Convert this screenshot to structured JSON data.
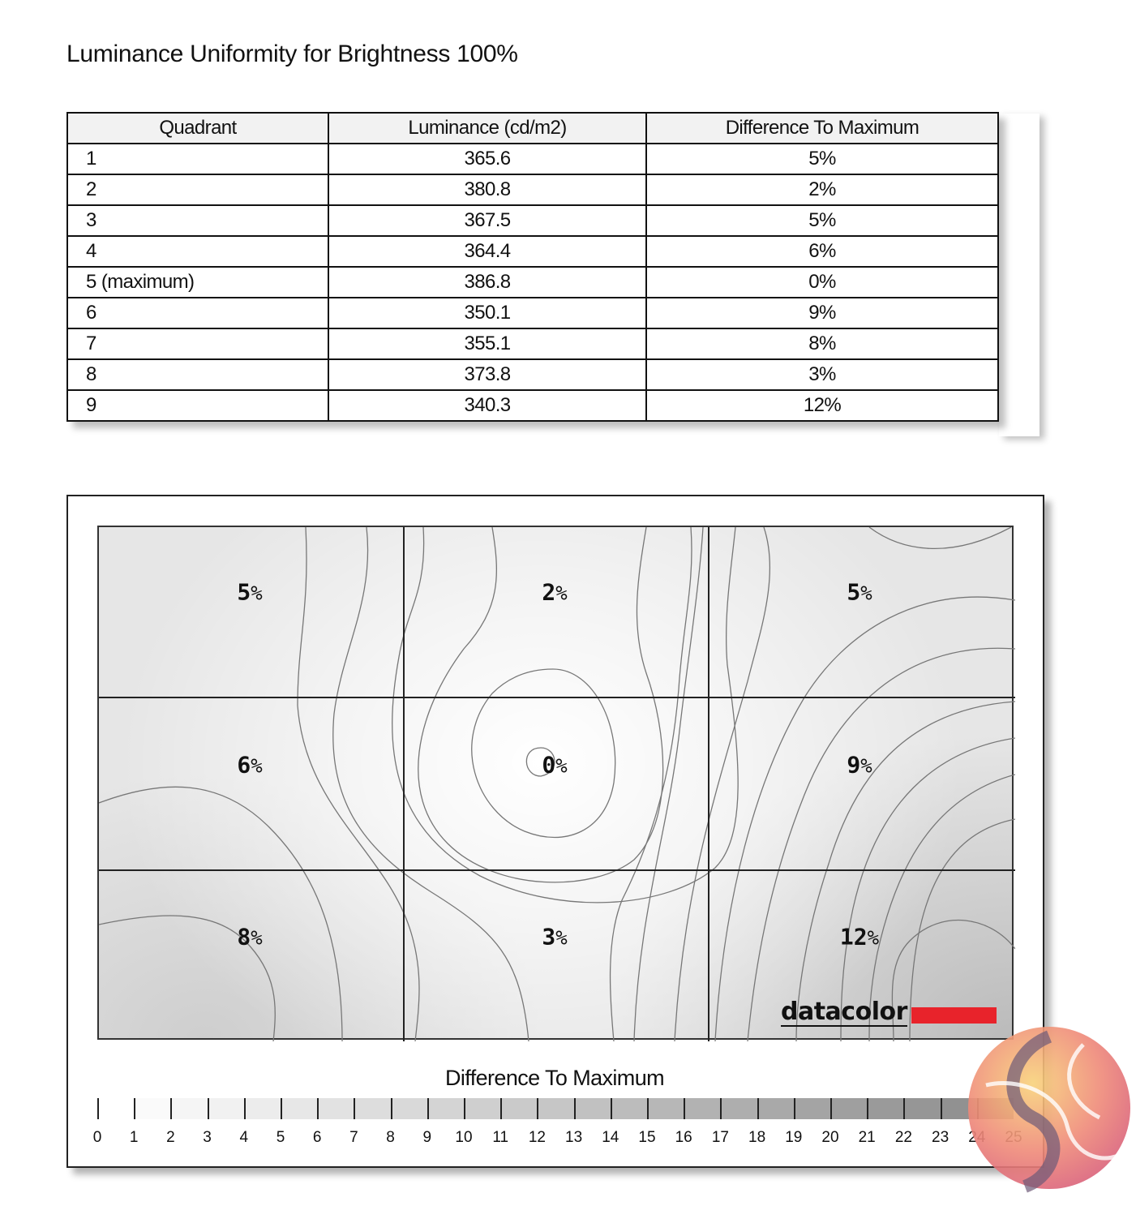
{
  "title": "Luminance Uniformity for Brightness 100%",
  "table": {
    "headers": [
      "Quadrant",
      "Luminance (cd/m2)",
      "Difference To Maximum"
    ],
    "rows": [
      [
        "1",
        "365.6",
        "5%"
      ],
      [
        "2",
        "380.8",
        "2%"
      ],
      [
        "3",
        "367.5",
        "5%"
      ],
      [
        "4",
        "364.4",
        "6%"
      ],
      [
        "5 (maximum)",
        "386.8",
        "0%"
      ],
      [
        "6",
        "350.1",
        "9%"
      ],
      [
        "7",
        "355.1",
        "8%"
      ],
      [
        "8",
        "373.8",
        "3%"
      ],
      [
        "9",
        "340.3",
        "12%"
      ]
    ]
  },
  "chart_data": {
    "type": "heatmap",
    "rows": 3,
    "cols": 3,
    "values": [
      [
        5,
        2,
        5
      ],
      [
        6,
        0,
        9
      ],
      [
        8,
        3,
        12
      ]
    ],
    "cell_labels": [
      [
        "5",
        "2",
        "5"
      ],
      [
        "6",
        "0",
        "9"
      ],
      [
        "8",
        "3",
        "12"
      ]
    ],
    "unit": "%",
    "colorbar": {
      "title": "Difference To Maximum",
      "range": [
        0,
        25
      ],
      "ticks": [
        "0",
        "1",
        "2",
        "3",
        "4",
        "5",
        "6",
        "7",
        "8",
        "9",
        "10",
        "11",
        "12",
        "13",
        "14",
        "15",
        "16",
        "17",
        "18",
        "19",
        "20",
        "21",
        "22",
        "23",
        "24",
        "25"
      ],
      "colors": [
        "#ffffff",
        "#8c8c8c"
      ]
    },
    "contours": true
  },
  "brand": {
    "name": "datacolor",
    "accent": "#e8232b"
  }
}
